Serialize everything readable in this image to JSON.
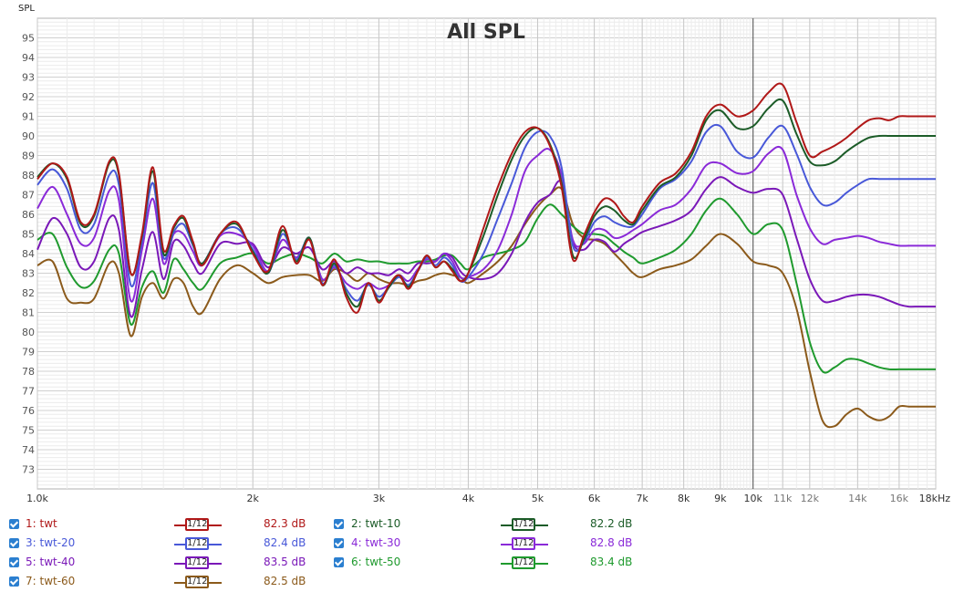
{
  "chart_data": {
    "type": "line",
    "title": "All SPL",
    "ylabel": "SPL",
    "xlabel": "",
    "x_scale": "log",
    "xlim": [
      1000,
      18000
    ],
    "ylim": [
      72,
      96
    ],
    "grid": true,
    "x_ticks": [
      {
        "value": 1000,
        "label": "1.0k"
      },
      {
        "value": 2000,
        "label": "2k"
      },
      {
        "value": 3000,
        "label": "3k"
      },
      {
        "value": 4000,
        "label": "4k"
      },
      {
        "value": 5000,
        "label": "5k"
      },
      {
        "value": 6000,
        "label": "6k"
      },
      {
        "value": 7000,
        "label": "7k"
      },
      {
        "value": 8000,
        "label": "8k"
      },
      {
        "value": 9000,
        "label": "9k"
      },
      {
        "value": 10000,
        "label": "10k"
      },
      {
        "value": 11000,
        "label": "11k"
      },
      {
        "value": 12000,
        "label": "12k"
      },
      {
        "value": 14000,
        "label": "14k"
      },
      {
        "value": 16000,
        "label": "16k"
      },
      {
        "value": 18000,
        "label": "18kHz"
      }
    ],
    "y_ticks": [
      73,
      74,
      75,
      76,
      77,
      78,
      79,
      80,
      81,
      82,
      83,
      84,
      85,
      86,
      87,
      88,
      89,
      90,
      91,
      92,
      93,
      94,
      95
    ],
    "x": [
      1000,
      1050,
      1100,
      1150,
      1200,
      1260,
      1300,
      1350,
      1400,
      1450,
      1500,
      1550,
      1600,
      1650,
      1700,
      1800,
      1900,
      2000,
      2100,
      2200,
      2300,
      2400,
      2500,
      2600,
      2700,
      2800,
      2900,
      3000,
      3100,
      3200,
      3300,
      3400,
      3500,
      3600,
      3700,
      3800,
      3900,
      4000,
      4200,
      4400,
      4600,
      4800,
      5000,
      5200,
      5400,
      5600,
      5800,
      6000,
      6200,
      6400,
      6600,
      6800,
      7000,
      7400,
      7800,
      8200,
      8600,
      9000,
      9500,
      10000,
      10500,
      11000,
      11500,
      12000,
      12500,
      13000,
      13500,
      14000,
      14500,
      15000,
      15500,
      16000,
      16500,
      17000,
      17500,
      18000
    ],
    "series": [
      {
        "name": "1: twt",
        "color": "#b01818",
        "values": [
          87.8,
          88.6,
          87.9,
          85.6,
          86.0,
          88.7,
          88.1,
          83.0,
          85.0,
          88.4,
          84.2,
          85.4,
          85.9,
          84.6,
          83.4,
          85.0,
          85.6,
          84.0,
          83.1,
          85.4,
          83.5,
          84.7,
          82.4,
          83.7,
          81.8,
          81.0,
          82.5,
          81.5,
          82.4,
          82.9,
          82.2,
          83.1,
          83.9,
          83.3,
          83.6,
          83.1,
          82.6,
          83.0,
          85.3,
          87.4,
          89.1,
          90.2,
          90.4,
          89.5,
          87.4,
          83.7,
          84.9,
          86.1,
          86.8,
          86.6,
          85.9,
          85.6,
          86.4,
          87.6,
          88.1,
          89.2,
          91.0,
          91.6,
          91.0,
          91.3,
          92.2,
          92.6,
          90.7,
          89.0,
          89.2,
          89.5,
          89.9,
          90.4,
          90.8,
          90.9,
          90.8,
          91.0,
          91.0,
          91.0,
          91.0,
          91.0
        ]
      },
      {
        "name": "2: twt-10",
        "color": "#1c5c28",
        "values": [
          87.9,
          88.6,
          87.8,
          85.5,
          85.9,
          88.6,
          88.0,
          83.0,
          84.9,
          88.2,
          84.0,
          85.3,
          85.8,
          84.5,
          83.5,
          85.0,
          85.5,
          84.1,
          83.0,
          85.2,
          83.6,
          84.8,
          82.4,
          83.5,
          82.0,
          81.3,
          82.5,
          81.6,
          82.3,
          82.9,
          82.3,
          83.1,
          83.9,
          83.3,
          83.6,
          83.2,
          82.6,
          83.0,
          84.9,
          87.0,
          88.8,
          90.0,
          90.4,
          89.6,
          87.6,
          83.9,
          84.7,
          85.9,
          86.4,
          86.2,
          85.7,
          85.5,
          86.2,
          87.4,
          87.9,
          89.0,
          90.8,
          91.3,
          90.4,
          90.5,
          91.4,
          91.8,
          90.1,
          88.7,
          88.5,
          88.7,
          89.2,
          89.6,
          89.9,
          90.0,
          90.0,
          90.0,
          90.0,
          90.0,
          90.0,
          90.0
        ]
      },
      {
        "name": "3: twt-20",
        "color": "#4858d8",
        "values": [
          87.5,
          88.3,
          87.3,
          85.2,
          85.5,
          88.0,
          87.5,
          82.4,
          84.6,
          87.6,
          83.8,
          85.1,
          85.5,
          84.4,
          83.5,
          85.0,
          85.3,
          84.2,
          83.0,
          85.0,
          83.7,
          84.8,
          82.5,
          83.4,
          82.2,
          81.6,
          82.4,
          81.8,
          82.3,
          82.8,
          82.4,
          83.1,
          83.8,
          83.4,
          83.8,
          83.4,
          82.6,
          82.8,
          84.0,
          85.8,
          87.6,
          89.4,
          90.2,
          90.0,
          88.4,
          84.4,
          84.6,
          85.6,
          85.9,
          85.6,
          85.4,
          85.4,
          86.0,
          87.3,
          87.8,
          88.7,
          90.2,
          90.5,
          89.2,
          88.9,
          89.9,
          90.5,
          89.1,
          87.4,
          86.5,
          86.6,
          87.1,
          87.5,
          87.8,
          87.8,
          87.8,
          87.8,
          87.8,
          87.8,
          87.8,
          87.8
        ]
      },
      {
        "name": "4: twt-30",
        "color": "#8a2ad8",
        "values": [
          86.3,
          87.4,
          86.0,
          84.5,
          84.8,
          87.2,
          86.7,
          81.6,
          84.2,
          86.8,
          83.5,
          85.0,
          85.0,
          84.1,
          83.4,
          84.9,
          85.0,
          84.4,
          83.1,
          84.7,
          83.8,
          84.7,
          82.7,
          83.3,
          82.5,
          82.2,
          82.5,
          82.2,
          82.4,
          82.9,
          82.6,
          83.2,
          83.7,
          83.6,
          84.0,
          83.6,
          82.8,
          82.8,
          83.2,
          84.2,
          86.0,
          88.2,
          89.0,
          89.3,
          88.0,
          84.7,
          84.5,
          85.2,
          85.2,
          84.8,
          84.9,
          85.2,
          85.5,
          86.2,
          86.5,
          87.3,
          88.5,
          88.6,
          88.1,
          88.2,
          89.1,
          89.3,
          87.0,
          85.3,
          84.5,
          84.7,
          84.8,
          84.9,
          84.8,
          84.6,
          84.5,
          84.4,
          84.4,
          84.4,
          84.4,
          84.4
        ]
      },
      {
        "name": "5: twt-40",
        "color": "#7a18b8",
        "values": [
          84.2,
          85.8,
          85.0,
          83.3,
          83.6,
          85.8,
          85.2,
          80.8,
          83.2,
          85.1,
          82.7,
          84.6,
          84.4,
          83.5,
          83.0,
          84.5,
          84.5,
          84.5,
          83.3,
          84.3,
          84.0,
          84.3,
          83.2,
          83.6,
          83.0,
          83.3,
          83.0,
          83.0,
          82.9,
          83.2,
          83.0,
          83.5,
          83.5,
          83.6,
          84.0,
          83.8,
          83.1,
          82.8,
          82.7,
          83.0,
          84.0,
          85.6,
          86.6,
          87.0,
          87.6,
          84.6,
          84.2,
          84.7,
          84.6,
          84.1,
          84.5,
          84.8,
          85.1,
          85.4,
          85.7,
          86.2,
          87.3,
          87.9,
          87.4,
          87.1,
          87.3,
          87.0,
          84.8,
          82.7,
          81.6,
          81.6,
          81.8,
          81.9,
          81.9,
          81.8,
          81.6,
          81.4,
          81.3,
          81.3,
          81.3,
          81.3
        ]
      },
      {
        "name": "6: twt-50",
        "color": "#1f9a2e",
        "values": [
          84.7,
          85.0,
          83.3,
          82.3,
          82.6,
          84.2,
          84.0,
          80.4,
          82.3,
          83.1,
          82.0,
          83.7,
          83.2,
          82.5,
          82.2,
          83.5,
          83.8,
          84.0,
          83.5,
          83.8,
          84.0,
          83.8,
          83.5,
          84.0,
          83.6,
          83.7,
          83.6,
          83.6,
          83.5,
          83.5,
          83.5,
          83.6,
          83.6,
          83.7,
          83.9,
          83.9,
          83.5,
          83.2,
          83.8,
          84.0,
          84.2,
          84.6,
          85.8,
          86.5,
          86.0,
          85.4,
          85.0,
          85.0,
          84.9,
          84.5,
          84.1,
          83.8,
          83.5,
          83.8,
          84.2,
          85.0,
          86.2,
          86.8,
          86.0,
          85.0,
          85.5,
          85.2,
          82.5,
          79.5,
          78.0,
          78.2,
          78.6,
          78.6,
          78.4,
          78.2,
          78.1,
          78.1,
          78.1,
          78.1,
          78.1,
          78.1
        ]
      },
      {
        "name": "7: twt-60",
        "color": "#8b5a1b",
        "values": [
          83.4,
          83.6,
          81.7,
          81.5,
          81.7,
          83.5,
          83.0,
          79.8,
          81.8,
          82.5,
          81.7,
          82.7,
          82.5,
          81.3,
          81.0,
          82.7,
          83.4,
          83.0,
          82.5,
          82.8,
          82.9,
          82.9,
          82.6,
          83.2,
          83.0,
          82.6,
          83.0,
          82.7,
          82.5,
          82.5,
          82.4,
          82.6,
          82.7,
          82.9,
          83.0,
          82.9,
          82.8,
          82.5,
          83.0,
          83.6,
          84.4,
          85.5,
          86.4,
          87.0,
          87.3,
          85.5,
          84.8,
          84.7,
          84.5,
          84.0,
          83.5,
          83.0,
          82.8,
          83.2,
          83.4,
          83.7,
          84.4,
          85.0,
          84.5,
          83.6,
          83.4,
          83.0,
          81.2,
          78.0,
          75.5,
          75.2,
          75.8,
          76.1,
          75.7,
          75.5,
          75.7,
          76.2,
          76.2,
          76.2,
          76.2,
          76.2
        ]
      }
    ]
  },
  "legend": [
    {
      "label": "1: twt",
      "smoothing": "1/12",
      "value": "82.3 dB",
      "color": "#b01818"
    },
    {
      "label": "2: twt-10",
      "smoothing": "1/12",
      "value": "82.2 dB",
      "color": "#1c5c28"
    },
    {
      "label": "3: twt-20",
      "smoothing": "1/12",
      "value": "82.4 dB",
      "color": "#4858d8"
    },
    {
      "label": "4: twt-30",
      "smoothing": "1/12",
      "value": "82.8 dB",
      "color": "#8a2ad8"
    },
    {
      "label": "5: twt-40",
      "smoothing": "1/12",
      "value": "83.5 dB",
      "color": "#7a18b8"
    },
    {
      "label": "6: twt-50",
      "smoothing": "1/12",
      "value": "83.4 dB",
      "color": "#1f9a2e"
    },
    {
      "label": "7: twt-60",
      "smoothing": "1/12",
      "value": "82.5 dB",
      "color": "#8b5a1b"
    }
  ],
  "cursor": {
    "frequency": 10000
  }
}
